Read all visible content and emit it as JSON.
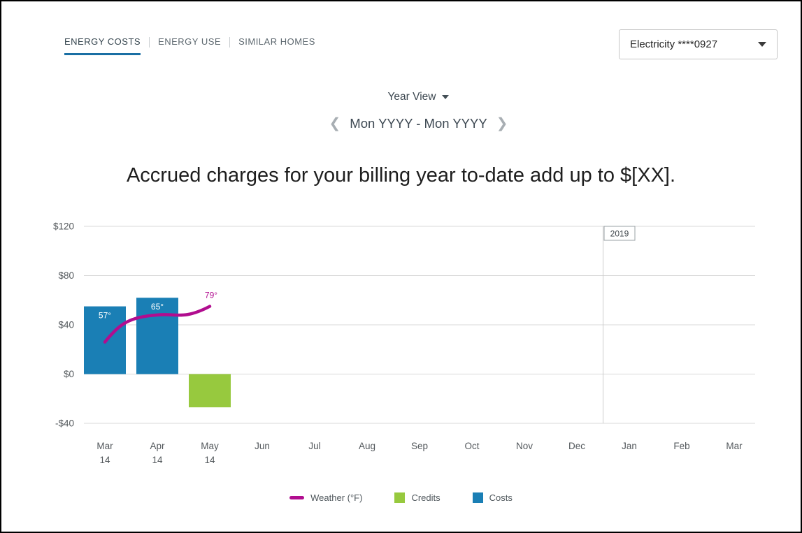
{
  "tabs": {
    "items": [
      {
        "label": "ENERGY COSTS",
        "active": true
      },
      {
        "label": "ENERGY USE",
        "active": false
      },
      {
        "label": "SIMILAR HOMES",
        "active": false
      }
    ]
  },
  "account_dropdown": {
    "value": "Electricity ****0927"
  },
  "view_dropdown": {
    "label": "Year View"
  },
  "period_nav": {
    "label": "Mon YYYY - Mon YYYY",
    "prev_icon": "❮",
    "next_icon": "❯"
  },
  "headline": "Accrued charges for your billing year to-date add up to $[XX].",
  "chart_data": {
    "type": "bar",
    "categories": [
      "Mar 14",
      "Apr 14",
      "May 14",
      "Jun",
      "Jul",
      "Aug",
      "Sep",
      "Oct",
      "Nov",
      "Dec",
      "Jan",
      "Feb",
      "Mar"
    ],
    "category_lines": [
      [
        "Mar",
        "14"
      ],
      [
        "Apr",
        "14"
      ],
      [
        "May",
        "14"
      ],
      [
        "Jun"
      ],
      [
        "Jul"
      ],
      [
        "Aug"
      ],
      [
        "Sep"
      ],
      [
        "Oct"
      ],
      [
        "Nov"
      ],
      [
        "Dec"
      ],
      [
        "Jan"
      ],
      [
        "Feb"
      ],
      [
        "Mar"
      ]
    ],
    "ylim": [
      -40,
      120
    ],
    "yticks": [
      {
        "value": 120,
        "label": "$120"
      },
      {
        "value": 80,
        "label": "$80"
      },
      {
        "value": 40,
        "label": "$40"
      },
      {
        "value": 0,
        "label": "$0"
      },
      {
        "value": -40,
        "label": "-$40"
      }
    ],
    "grid": true,
    "legend_position": "bottom",
    "series": [
      {
        "name": "Costs",
        "type": "bar",
        "color": "#1a7fb5",
        "values": [
          55,
          62,
          null,
          null,
          null,
          null,
          null,
          null,
          null,
          null,
          null,
          null,
          null
        ]
      },
      {
        "name": "Credits",
        "type": "bar",
        "color": "#97c93e",
        "values": [
          null,
          null,
          -27,
          null,
          null,
          null,
          null,
          null,
          null,
          null,
          null,
          null,
          null
        ]
      },
      {
        "name": "Weather (°F)",
        "type": "line",
        "color": "#b10d8f",
        "values_f": [
          57,
          65,
          79
        ],
        "point_labels": [
          "57°",
          "65°",
          "79°"
        ],
        "label_colors": [
          "#ffffff",
          "#ffffff",
          "#b10d8f"
        ],
        "plotted_dollar_equiv": [
          26,
          48,
          55
        ]
      }
    ],
    "year_marker": {
      "label": "2019",
      "after_category_index": 9
    }
  },
  "legend": {
    "items": [
      {
        "label": "Weather (°F)",
        "color": "#b10d8f",
        "shape": "line"
      },
      {
        "label": "Credits",
        "color": "#97c93e",
        "shape": "square"
      },
      {
        "label": "Costs",
        "color": "#1a7fb5",
        "shape": "square"
      }
    ]
  }
}
